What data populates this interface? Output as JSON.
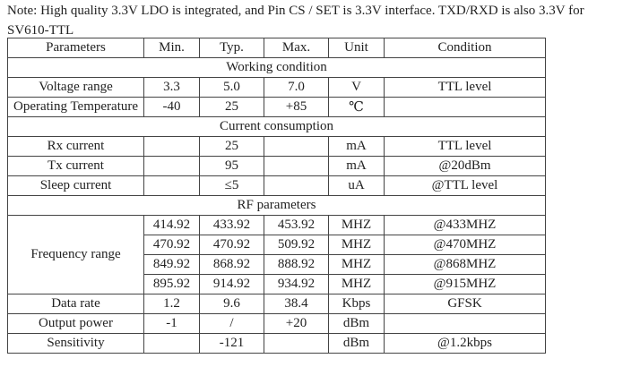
{
  "note": {
    "line1": "Note: High quality 3.3V LDO is integrated, and Pin CS / SET is 3.3V interface. TXD/RXD is also 3.3V for",
    "line2": "SV610-TTL"
  },
  "table": {
    "headers": [
      "Parameters",
      "Min.",
      "Typ.",
      "Max.",
      "Unit",
      "Condition"
    ],
    "sections": {
      "working": "Working condition",
      "current": "Current consumption",
      "rf": "RF parameters"
    },
    "working_rows": [
      [
        "Voltage range",
        "3.3",
        "5.0",
        "7.0",
        "V",
        "TTL level"
      ],
      [
        "Operating Temperature",
        "-40",
        "25",
        "+85",
        "℃",
        ""
      ]
    ],
    "current_rows": [
      [
        "Rx current",
        "",
        "25",
        "",
        "mA",
        "TTL level"
      ],
      [
        "Tx current",
        "",
        "95",
        "",
        "mA",
        "@20dBm"
      ],
      [
        "Sleep current",
        "",
        "≤5",
        "",
        "uA",
        "@TTL level"
      ]
    ],
    "frequency_label": "Frequency range",
    "frequency_rows": [
      [
        "414.92",
        "433.92",
        "453.92",
        "MHZ",
        "@433MHZ"
      ],
      [
        "470.92",
        "470.92",
        "509.92",
        "MHZ",
        "@470MHZ"
      ],
      [
        "849.92",
        "868.92",
        "888.92",
        "MHZ",
        "@868MHZ"
      ],
      [
        "895.92",
        "914.92",
        "934.92",
        "MHZ",
        "@915MHZ"
      ]
    ],
    "rf_rows": [
      [
        "Data rate",
        "1.2",
        "9.6",
        "38.4",
        "Kbps",
        "GFSK"
      ],
      [
        "Output power",
        "-1",
        "/",
        "+20",
        "dBm",
        ""
      ],
      [
        "Sensitivity",
        "",
        "-121",
        "",
        "dBm",
        "@1.2kbps"
      ]
    ]
  }
}
